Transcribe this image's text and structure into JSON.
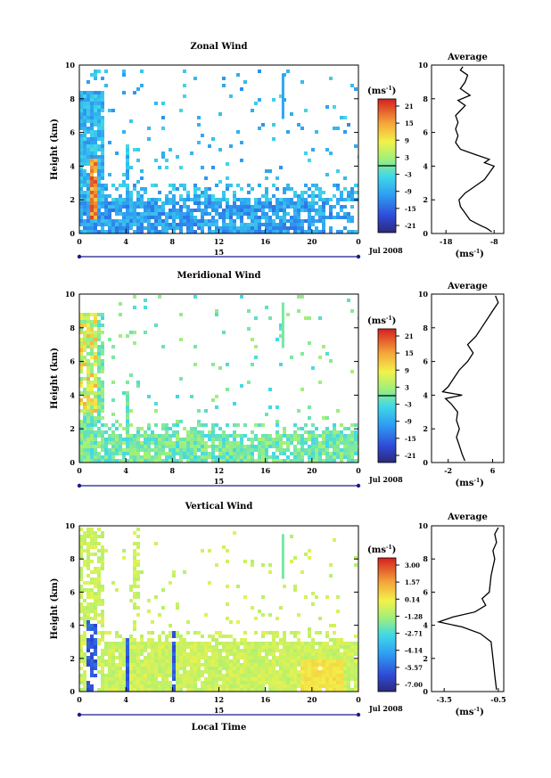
{
  "chart_data": [
    {
      "type": "heatmap",
      "title": "Zonal Wind",
      "ylabel": "Height (km)",
      "xlim": [
        0,
        24
      ],
      "ylim": [
        0,
        10
      ],
      "x_ticks": [
        "0",
        "4",
        "8",
        "12",
        "16",
        "20",
        "0"
      ],
      "y_ticks": [
        "0",
        "2",
        "4",
        "6",
        "8",
        "10"
      ],
      "date_marker": "15",
      "date_label": "Jul 2008",
      "colorbar": {
        "units": "(ms⁻¹)",
        "ticks": [
          "21",
          "15",
          "9",
          "3",
          "-3",
          "-9",
          "-15",
          "-21"
        ],
        "range": [
          -24,
          24
        ]
      },
      "average": {
        "title": "Average",
        "xlabel": "(ms⁻¹)",
        "x_ticks": [
          "-18",
          "-8"
        ],
        "xlim": [
          -21,
          -6
        ],
        "y_ticks": [
          "0",
          "2",
          "4",
          "6",
          "8",
          "10"
        ],
        "profile": [
          [
            -8.5,
            0.1
          ],
          [
            -9.5,
            0.3
          ],
          [
            -11,
            0.5
          ],
          [
            -13,
            0.8
          ],
          [
            -14,
            1.2
          ],
          [
            -15,
            1.6
          ],
          [
            -15.3,
            2.0
          ],
          [
            -14,
            2.4
          ],
          [
            -12,
            2.8
          ],
          [
            -10,
            3.2
          ],
          [
            -9,
            3.6
          ],
          [
            -8,
            4.0
          ],
          [
            -10,
            4.2
          ],
          [
            -9,
            4.4
          ],
          [
            -12,
            4.7
          ],
          [
            -15,
            5.0
          ],
          [
            -16,
            5.4
          ],
          [
            -15.5,
            5.8
          ],
          [
            -16,
            6.2
          ],
          [
            -15.5,
            6.6
          ],
          [
            -16,
            7.0
          ],
          [
            -15,
            7.3
          ],
          [
            -14,
            7.6
          ],
          [
            -15.5,
            7.9
          ],
          [
            -13,
            8.2
          ],
          [
            -15,
            8.6
          ],
          [
            -14,
            9.0
          ],
          [
            -13.5,
            9.4
          ],
          [
            -15,
            9.7
          ],
          [
            -14.5,
            9.9
          ]
        ]
      }
    },
    {
      "type": "heatmap",
      "title": "Meridional Wind",
      "ylabel": "Height (km)",
      "xlim": [
        0,
        24
      ],
      "ylim": [
        0,
        10
      ],
      "x_ticks": [
        "0",
        "4",
        "8",
        "12",
        "16",
        "20",
        "0"
      ],
      "y_ticks": [
        "0",
        "2",
        "4",
        "6",
        "8",
        "10"
      ],
      "date_marker": "15",
      "date_label": "Jul 2008",
      "colorbar": {
        "units": "(ms⁻¹)",
        "ticks": [
          "21",
          "15",
          "9",
          "3",
          "-3",
          "-9",
          "-15",
          "-21"
        ],
        "range": [
          -24,
          24
        ]
      },
      "average": {
        "title": "Average",
        "xlabel": "(ms⁻¹)",
        "x_ticks": [
          "-2",
          "6"
        ],
        "xlim": [
          -5,
          8
        ],
        "y_ticks": [
          "0",
          "2",
          "4",
          "6",
          "8",
          "10"
        ],
        "profile": [
          [
            1,
            0.1
          ],
          [
            0.5,
            0.5
          ],
          [
            0,
            1.0
          ],
          [
            -0.5,
            1.5
          ],
          [
            0,
            2.0
          ],
          [
            -0.5,
            2.5
          ],
          [
            -0.3,
            3.0
          ],
          [
            -1.5,
            3.5
          ],
          [
            -2.5,
            3.8
          ],
          [
            0.5,
            4.0
          ],
          [
            -3,
            4.2
          ],
          [
            -2,
            4.5
          ],
          [
            -1,
            5.0
          ],
          [
            0,
            5.5
          ],
          [
            1.5,
            6.0
          ],
          [
            2.5,
            6.5
          ],
          [
            1.5,
            7.0
          ],
          [
            3,
            7.5
          ],
          [
            4,
            8.0
          ],
          [
            5,
            8.5
          ],
          [
            6,
            9.0
          ],
          [
            7,
            9.5
          ],
          [
            6.5,
            9.9
          ]
        ]
      }
    },
    {
      "type": "heatmap",
      "title": "Vertical Wind",
      "xlabel": "Local Time",
      "ylabel": "Height (km)",
      "xlim": [
        0,
        24
      ],
      "ylim": [
        0,
        10
      ],
      "x_ticks": [
        "0",
        "4",
        "8",
        "12",
        "16",
        "20",
        "0"
      ],
      "y_ticks": [
        "0",
        "2",
        "4",
        "6",
        "8",
        "10"
      ],
      "date_marker": "15",
      "date_label": "Jul 2008",
      "colorbar": {
        "units": "(ms⁻¹)",
        "ticks": [
          "3.00",
          "1.57",
          "0.14",
          "-1.28",
          "-2.71",
          "-4.14",
          "-5.57",
          "-7.00"
        ],
        "range": [
          -7.7,
          3.7
        ]
      },
      "average": {
        "title": "Average",
        "xlabel": "(ms⁻¹)",
        "x_ticks": [
          "-3.5",
          "-0.5"
        ],
        "xlim": [
          -4.2,
          -0.2
        ],
        "y_ticks": [
          "0",
          "2",
          "4",
          "6",
          "8",
          "10"
        ],
        "profile": [
          [
            -0.6,
            0.1
          ],
          [
            -0.7,
            1.0
          ],
          [
            -0.8,
            2.0
          ],
          [
            -0.9,
            3.0
          ],
          [
            -1.5,
            3.5
          ],
          [
            -2.5,
            3.9
          ],
          [
            -3.8,
            4.2
          ],
          [
            -3.0,
            4.5
          ],
          [
            -1.8,
            4.8
          ],
          [
            -1.2,
            5.2
          ],
          [
            -1.4,
            5.6
          ],
          [
            -1.0,
            6.0
          ],
          [
            -0.9,
            7.0
          ],
          [
            -0.7,
            8.0
          ],
          [
            -0.8,
            8.5
          ],
          [
            -0.6,
            9.0
          ],
          [
            -0.7,
            9.5
          ],
          [
            -0.5,
            9.9
          ]
        ]
      }
    }
  ]
}
